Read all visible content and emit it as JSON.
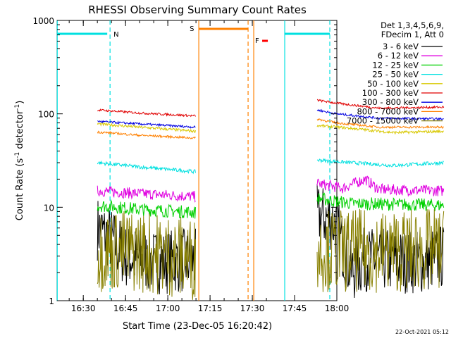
{
  "chart_data": {
    "type": "line",
    "title": "RHESSI Observing Summary Count Rates",
    "xlabel": "Start Time (23-Dec-05 16:20:42)",
    "ylabel_main": "Count Rate (s",
    "ylabel_sup1": "-1",
    "ylabel_mid": " detector",
    "ylabel_sup2": "-1",
    "ylabel_end": ")",
    "yscale": "log",
    "ylim": [
      1,
      1000
    ],
    "xlim": [
      "16:20:42",
      "18:00:00"
    ],
    "x_ticks": [
      "16:30",
      "16:45",
      "17:00",
      "17:15",
      "17:30",
      "17:45",
      "18:00"
    ],
    "y_ticks": [
      "1",
      "10",
      "100",
      "1000"
    ],
    "legend": {
      "header_line1": "Det 1,3,4,5,6,9,",
      "header_line2": "FDecim 1, Att 0",
      "placement": "outside-right-top"
    },
    "series": [
      {
        "name": "3 - 6 keV",
        "color": "#000000",
        "seg1": [
          [
            16.35,
            6
          ],
          [
            16.4,
            4.5
          ],
          [
            16.45,
            3
          ],
          [
            16.55,
            2.6
          ],
          [
            16.7,
            2.7
          ],
          [
            16.9,
            2.5
          ],
          [
            17.1,
            2.8
          ]
        ],
        "seg2": [
          [
            17.53,
            8
          ],
          [
            17.58,
            7.5
          ],
          [
            17.6,
            6
          ],
          [
            17.65,
            2
          ],
          [
            17.7,
            2.8
          ],
          [
            17.9,
            2.6
          ],
          [
            17.98,
            3
          ]
        ],
        "noise": 0.35
      },
      {
        "name": "6 - 12 keV",
        "color": "#e000e0",
        "seg1": [
          [
            16.35,
            15
          ],
          [
            16.5,
            14
          ],
          [
            16.7,
            13
          ],
          [
            16.95,
            13.5
          ],
          [
            17.1,
            15
          ]
        ],
        "seg2": [
          [
            17.53,
            18
          ],
          [
            17.62,
            16
          ],
          [
            17.7,
            20
          ],
          [
            17.75,
            15.5
          ],
          [
            17.98,
            15
          ]
        ],
        "noise": 0.06
      },
      {
        "name": "12 - 25 keV",
        "color": "#00d000",
        "seg1": [
          [
            16.35,
            10.5
          ],
          [
            16.5,
            9.5
          ],
          [
            16.7,
            8.8
          ],
          [
            16.95,
            9
          ],
          [
            17.05,
            10
          ],
          [
            17.1,
            12
          ]
        ],
        "seg2": [
          [
            17.53,
            12.5
          ],
          [
            17.65,
            11
          ],
          [
            17.98,
            10.5
          ]
        ],
        "noise": 0.07
      },
      {
        "name": "25 - 50 keV",
        "color": "#00e0e0",
        "seg1": [
          [
            16.35,
            30
          ],
          [
            16.5,
            27
          ],
          [
            16.7,
            24
          ],
          [
            16.92,
            25
          ],
          [
            17.0,
            30
          ],
          [
            17.08,
            45
          ],
          [
            17.1,
            55
          ]
        ],
        "seg2": [
          [
            17.53,
            32
          ],
          [
            17.65,
            30
          ],
          [
            17.8,
            28
          ],
          [
            17.98,
            30
          ]
        ],
        "noise": 0.02
      },
      {
        "name": "50 - 100 keV",
        "color": "#d8c800",
        "seg1": [
          [
            16.35,
            78
          ],
          [
            16.5,
            72
          ],
          [
            16.7,
            65
          ],
          [
            16.95,
            68
          ],
          [
            17.05,
            72
          ],
          [
            17.1,
            90
          ]
        ],
        "seg2": [
          [
            17.53,
            75
          ],
          [
            17.65,
            70
          ],
          [
            17.8,
            63
          ],
          [
            17.98,
            65
          ]
        ],
        "noise": 0.015
      },
      {
        "name": "100 - 300 keV",
        "color": "#e00000",
        "seg1": [
          [
            16.35,
            110
          ],
          [
            16.5,
            102
          ],
          [
            16.7,
            95
          ],
          [
            16.92,
            93
          ],
          [
            17.05,
            100
          ],
          [
            17.1,
            160
          ]
        ],
        "seg2": [
          [
            17.53,
            140
          ],
          [
            17.6,
            130
          ],
          [
            17.75,
            115
          ],
          [
            17.98,
            118
          ]
        ],
        "noise": 0.012
      },
      {
        "name": "300 - 800 keV",
        "color": "#0000e0",
        "seg1": [
          [
            16.35,
            83
          ],
          [
            16.5,
            78
          ],
          [
            16.7,
            72
          ],
          [
            16.95,
            73
          ],
          [
            17.05,
            78
          ],
          [
            17.1,
            130
          ]
        ],
        "seg2": [
          [
            17.53,
            110
          ],
          [
            17.6,
            100
          ],
          [
            17.75,
            90
          ],
          [
            17.98,
            88
          ]
        ],
        "noise": 0.012
      },
      {
        "name": "800 - 7000 keV",
        "color": "#ff8000",
        "seg1": [
          [
            16.35,
            64
          ],
          [
            16.5,
            59
          ],
          [
            16.7,
            55
          ],
          [
            16.95,
            56
          ],
          [
            17.05,
            59
          ],
          [
            17.1,
            100
          ]
        ],
        "seg2": [
          [
            17.53,
            88
          ],
          [
            17.6,
            80
          ],
          [
            17.75,
            72
          ],
          [
            17.98,
            72
          ]
        ],
        "noise": 0.012
      },
      {
        "name": "7000 - 15000 keV",
        "color": "#888000",
        "seg1": [
          [
            16.35,
            3.5
          ],
          [
            16.5,
            3.4
          ],
          [
            16.7,
            2.8
          ],
          [
            16.95,
            3.3
          ],
          [
            17.1,
            3.4
          ]
        ],
        "seg2": [
          [
            17.53,
            3.5
          ],
          [
            17.65,
            3.4
          ],
          [
            17.98,
            3.5
          ]
        ],
        "noise": 0.45
      }
    ],
    "markers": {
      "night_label": "N",
      "saa_label": "S",
      "flare_label": "F",
      "night_color": "#00e0e0",
      "saa_color": "#ff8000",
      "flare_color": "#ff0000"
    },
    "footer_date": "22-Oct-2021 05:12"
  }
}
